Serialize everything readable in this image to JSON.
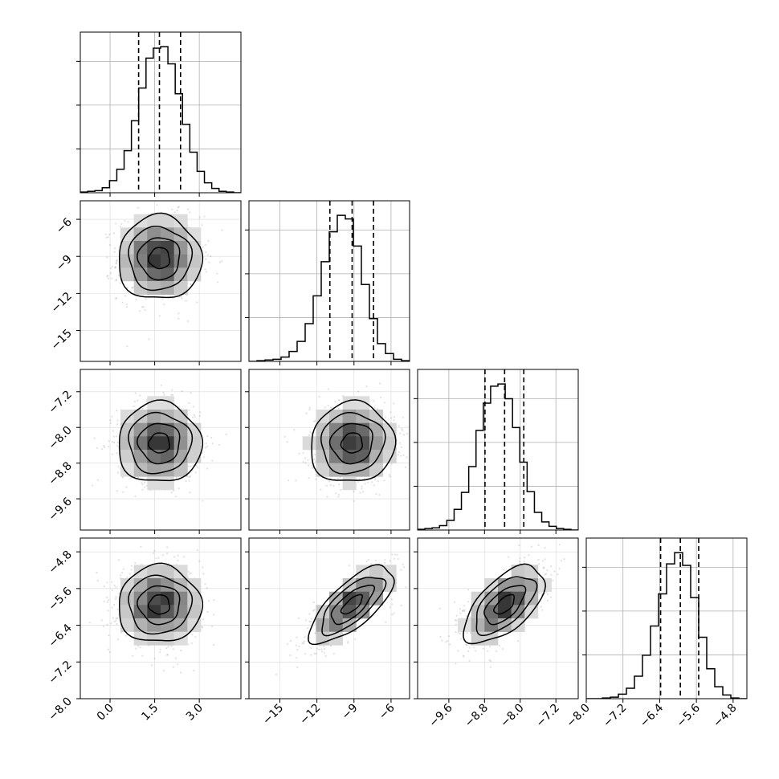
{
  "chart_data": {
    "type": "corner",
    "grid": true,
    "n_params": 4,
    "parameters": [
      {
        "range": [
          -1.0,
          4.4
        ],
        "ticks": [
          0.0,
          1.5,
          3.0
        ],
        "tick_labels": [
          "0.0",
          "1.5",
          "3.0"
        ]
      },
      {
        "range": [
          -17.5,
          -4.5
        ],
        "ticks": [
          -15,
          -12,
          -9,
          -6
        ],
        "tick_labels": [
          "−15",
          "−12",
          "−9",
          "−6"
        ]
      },
      {
        "range": [
          -10.3,
          -6.7
        ],
        "ticks": [
          -9.6,
          -8.8,
          -8.0,
          -7.2
        ],
        "tick_labels": [
          "−9.6",
          "−8.8",
          "−8.0",
          "−7.2"
        ]
      },
      {
        "range": [
          -8.0,
          -4.5
        ],
        "ticks": [
          -8.0,
          -7.2,
          -6.4,
          -5.6,
          -4.8
        ],
        "tick_labels": [
          "−8.0",
          "−7.2",
          "−6.4",
          "−5.6",
          "−4.8"
        ]
      }
    ],
    "marginals": [
      {
        "param": 0,
        "quantiles": [
          0.96,
          1.66,
          2.37
        ],
        "bins_edges": [
          -1.0,
          4.4
        ],
        "counts": [
          1,
          2,
          3,
          7,
          17,
          33,
          59,
          101,
          147,
          189,
          203,
          205,
          181,
          139,
          96,
          57,
          30,
          14,
          6,
          2,
          1,
          0
        ]
      },
      {
        "param": 1,
        "quantiles": [
          -10.95,
          -9.15,
          -7.42
        ],
        "bins_edges": [
          -17.5,
          -4.5
        ],
        "counts": [
          0,
          1,
          2,
          3,
          6,
          14,
          28,
          53,
          92,
          140,
          182,
          205,
          200,
          162,
          108,
          60,
          25,
          11,
          3,
          1
        ]
      },
      {
        "param": 2,
        "quantiles": [
          -8.79,
          -8.35,
          -7.92
        ],
        "bins_edges": [
          -10.3,
          -6.7
        ],
        "counts": [
          1,
          2,
          3,
          6,
          13,
          28,
          51,
          86,
          135,
          172,
          195,
          198,
          178,
          139,
          92,
          52,
          24,
          11,
          5,
          2,
          1,
          0
        ]
      },
      {
        "param": 3,
        "quantiles": [
          -6.38,
          -5.95,
          -5.55
        ],
        "bins_edges": [
          -8.0,
          -4.5
        ],
        "counts": [
          0,
          0,
          1,
          2,
          6,
          14,
          30,
          58,
          97,
          140,
          180,
          195,
          178,
          135,
          82,
          40,
          16,
          5,
          1,
          0
        ]
      }
    ],
    "pairs": [
      {
        "x": 0,
        "y": 1,
        "mean": [
          1.66,
          -9.15
        ],
        "std": [
          0.7,
          1.7
        ],
        "rho": 0.0
      },
      {
        "x": 0,
        "y": 2,
        "mean": [
          1.66,
          -8.35
        ],
        "std": [
          0.7,
          0.45
        ],
        "rho": 0.0
      },
      {
        "x": 1,
        "y": 2,
        "mean": [
          -9.15,
          -8.35
        ],
        "std": [
          1.7,
          0.45
        ],
        "rho": 0.05
      },
      {
        "x": 0,
        "y": 3,
        "mean": [
          1.66,
          -5.95
        ],
        "std": [
          0.7,
          0.42
        ],
        "rho": 0.0
      },
      {
        "x": 1,
        "y": 3,
        "mean": [
          -9.15,
          -5.95
        ],
        "std": [
          1.7,
          0.42
        ],
        "rho": 0.72
      },
      {
        "x": 2,
        "y": 3,
        "mean": [
          -8.35,
          -5.95
        ],
        "std": [
          0.45,
          0.42
        ],
        "rho": 0.6
      }
    ]
  }
}
